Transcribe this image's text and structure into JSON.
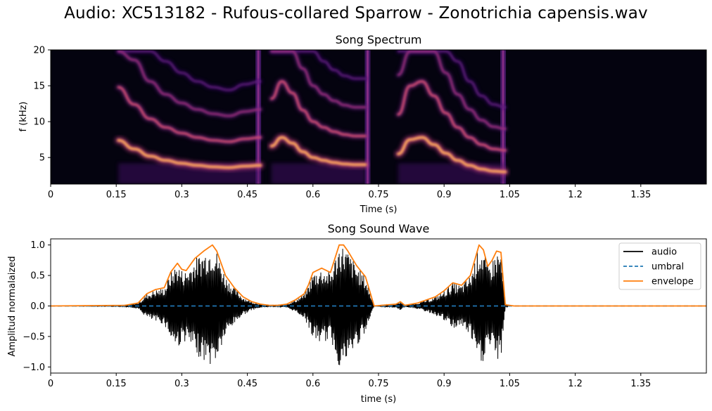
{
  "figure_title": "Audio: XC513182 - Rufous-collared Sparrow - Zonotrichia capensis.wav",
  "chart_data": [
    {
      "type": "heatmap",
      "title": "Song Spectrum",
      "xlabel": "Time (s)",
      "ylabel": "f (kHz)",
      "xlim": [
        0,
        1.5
      ],
      "ylim": [
        1.3,
        20
      ],
      "xticks": [
        "0",
        "0.15",
        "0.3",
        "0.45",
        "0.6",
        "0.75",
        "0.9",
        "1.05",
        "1.2",
        "1.35"
      ],
      "xtick_values": [
        0,
        0.15,
        0.3,
        0.45,
        0.6,
        0.75,
        0.9,
        1.05,
        1.2,
        1.35
      ],
      "yticks": [
        "5",
        "10",
        "15",
        "20"
      ],
      "ytick_values": [
        5,
        10,
        15,
        20
      ],
      "colormap": "magma",
      "background_color": "#04030f",
      "syllables": [
        {
          "start": 0.155,
          "end": 0.48,
          "fundamental_khz": [
            7.4,
            6.2,
            5.2,
            4.6,
            4.2,
            3.9,
            3.7,
            3.6,
            3.8,
            3.9
          ],
          "harmonic_count": 4
        },
        {
          "start": 0.505,
          "end": 0.72,
          "fundamental_khz": [
            6.6,
            7.8,
            7.0,
            5.8,
            5.0,
            4.6,
            4.3,
            4.1,
            4.0,
            4.0
          ],
          "harmonic_count": 4
        },
        {
          "start": 0.795,
          "end": 1.04,
          "fundamental_khz": [
            5.5,
            7.5,
            7.8,
            6.8,
            5.6,
            4.6,
            3.9,
            3.4,
            3.1,
            3.0
          ],
          "harmonic_count": 4
        }
      ],
      "broadband_bars_s": [
        0.475,
        0.725,
        1.035
      ]
    },
    {
      "type": "line",
      "title": "Song Sound Wave",
      "xlabel": "time (s)",
      "ylabel": "Amplitud normalaized",
      "xlim": [
        0,
        1.5
      ],
      "ylim": [
        -1.1,
        1.1
      ],
      "xticks": [
        "0",
        "0.15",
        "0.3",
        "0.45",
        "0.6",
        "0.75",
        "0.9",
        "1.05",
        "1.2",
        "1.35"
      ],
      "xtick_values": [
        0,
        0.15,
        0.3,
        0.45,
        0.6,
        0.75,
        0.9,
        1.05,
        1.2,
        1.35
      ],
      "yticks": [
        "1.0",
        "0.5",
        "0.0",
        "−0.5",
        "−1.0"
      ],
      "ytick_values": [
        1.0,
        0.5,
        0.0,
        -0.5,
        -1.0
      ],
      "legend_position": "upper right",
      "series": [
        {
          "name": "audio",
          "color": "#000000",
          "style": "solid"
        },
        {
          "name": "umbral",
          "color": "#1f77b4",
          "style": "dashed",
          "x": [
            0,
            1.5
          ],
          "y": [
            0,
            0
          ]
        },
        {
          "name": "envelope",
          "color": "#ff7f0e",
          "style": "solid",
          "x": [
            0,
            0.17,
            0.2,
            0.22,
            0.24,
            0.26,
            0.275,
            0.29,
            0.3,
            0.31,
            0.33,
            0.35,
            0.37,
            0.38,
            0.4,
            0.42,
            0.44,
            0.46,
            0.48,
            0.5,
            0.52,
            0.54,
            0.56,
            0.58,
            0.59,
            0.6,
            0.62,
            0.64,
            0.66,
            0.67,
            0.68,
            0.7,
            0.72,
            0.74,
            0.79,
            0.8,
            0.81,
            0.84,
            0.86,
            0.88,
            0.9,
            0.92,
            0.94,
            0.96,
            0.98,
            0.99,
            1.0,
            1.01,
            1.02,
            1.03,
            1.04,
            1.06,
            1.5
          ],
          "y": [
            0,
            0.01,
            0.05,
            0.2,
            0.27,
            0.3,
            0.56,
            0.7,
            0.6,
            0.58,
            0.78,
            0.9,
            1.0,
            0.9,
            0.5,
            0.3,
            0.15,
            0.07,
            0.03,
            0.01,
            0.01,
            0.03,
            0.1,
            0.2,
            0.35,
            0.55,
            0.62,
            0.55,
            1.0,
            1.0,
            0.9,
            0.66,
            0.48,
            0.0,
            0.03,
            0.07,
            0.01,
            0.05,
            0.1,
            0.15,
            0.25,
            0.38,
            0.34,
            0.5,
            1.0,
            0.92,
            0.65,
            0.75,
            0.9,
            0.88,
            0.02,
            0.0,
            0.0
          ]
        }
      ]
    }
  ]
}
